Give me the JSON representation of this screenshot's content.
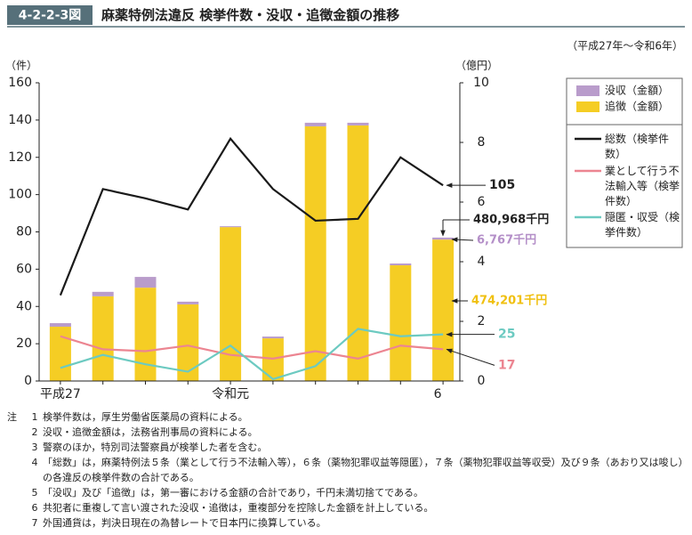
{
  "chart_data": {
    "type": "bar",
    "figure_label": "4-2-2-3図",
    "title": "麻薬特例法違反 検挙件数・没収・追徴金額の推移",
    "subtitle": "（平成27年～令和6年）",
    "ylabel": "（件）",
    "y2label": "（億円）",
    "categories": [
      "平成27",
      null,
      null,
      null,
      "令和元",
      null,
      null,
      null,
      null,
      "6"
    ],
    "ylim": [
      0,
      160
    ],
    "yticks": [
      0,
      20,
      40,
      60,
      80,
      100,
      120,
      140,
      160
    ],
    "y2lim": [
      0,
      10
    ],
    "y2ticks": [
      0,
      2,
      4,
      6,
      8,
      10
    ],
    "series": [
      {
        "name": "没収（金額）",
        "type": "bar",
        "axis": "y2",
        "color": "#b99ccb",
        "values": [
          0.12,
          0.15,
          0.36,
          0.09,
          0.03,
          0.06,
          0.12,
          0.09,
          0.06,
          0.06767
        ],
        "value_labels": [
          null,
          null,
          null,
          null,
          null,
          null,
          null,
          null,
          null,
          "6,767千円"
        ]
      },
      {
        "name": "追徴（金額）",
        "type": "bar",
        "axis": "y2",
        "color": "#f5cd24",
        "values": [
          1.82,
          2.84,
          3.13,
          2.57,
          5.16,
          1.43,
          8.54,
          8.57,
          3.88,
          4.74201
        ],
        "value_labels": [
          null,
          null,
          null,
          null,
          null,
          null,
          null,
          null,
          null,
          "474,201千円"
        ]
      },
      {
        "name": "総数（検挙件数）",
        "type": "line",
        "color": "#1a1a1a",
        "values": [
          46,
          103,
          98,
          92,
          130,
          103,
          86,
          87,
          120,
          105
        ]
      },
      {
        "name": "業として行う不法輸入等（検挙件数）",
        "type": "line",
        "color": "#ec8591",
        "values": [
          24,
          17,
          16,
          19,
          14,
          12,
          16,
          12,
          19,
          17
        ]
      },
      {
        "name": "隠匿・収受（検挙件数）",
        "type": "line",
        "color": "#6ccac1",
        "values": [
          7,
          14,
          9,
          5,
          19,
          1,
          8,
          28,
          24,
          25
        ]
      }
    ],
    "annotations": [
      {
        "text": "480,968千円",
        "value": 4.80968,
        "axis": "y2"
      }
    ],
    "notes_label": "注",
    "notes": [
      {
        "num": "1",
        "text": "検挙件数は，厚生労働省医薬局の資料による。"
      },
      {
        "num": "2",
        "text": "没収・追徴金額は，法務省刑事局の資料による。"
      },
      {
        "num": "3",
        "text": "警察のほか，特別司法警察員が検挙した者を含む。"
      },
      {
        "num": "4",
        "text": "「総数」は，麻薬特例法５条（業として行う不法輸入等），６条（薬物犯罪収益等隠匿），７条（薬物犯罪収益等収受）及び９条（あおり又は唆し）の各違反の検挙件数の合計である。"
      },
      {
        "num": "5",
        "text": "「没収」及び「追徴」は，第一審における金額の合計であり，千円未満切捨てである。"
      },
      {
        "num": "6",
        "text": "共犯者に重複して言い渡された没収・追徴は，重複部分を控除した金額を計上している。"
      },
      {
        "num": "7",
        "text": "外国通貨は，判決日現在の為替レートで日本円に換算している。"
      }
    ]
  }
}
